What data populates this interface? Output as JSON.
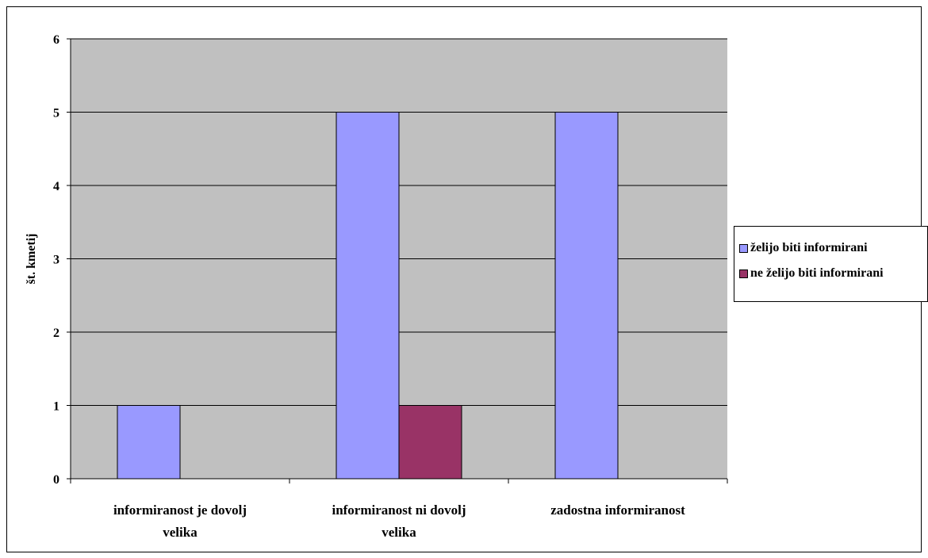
{
  "chart_data": {
    "type": "bar",
    "categories": [
      [
        "informiranost je dovolj",
        "velika"
      ],
      [
        "informiranost ni dovolj",
        "velika"
      ],
      [
        "zadostna informiranost"
      ]
    ],
    "series": [
      {
        "name": "želijo biti informirani",
        "values": [
          1,
          5,
          5
        ],
        "color": "#9999ff"
      },
      {
        "name": "ne želijo biti informirani",
        "values": [
          0,
          1,
          0
        ],
        "color": "#993366"
      }
    ],
    "xlabel": "",
    "ylabel": "št. kmetij",
    "ylim": [
      0,
      6
    ],
    "yticks": [
      0,
      1,
      2,
      3,
      4,
      5,
      6
    ],
    "grid": true,
    "plot_background": "#c0c0c0",
    "legend_position": "right"
  }
}
